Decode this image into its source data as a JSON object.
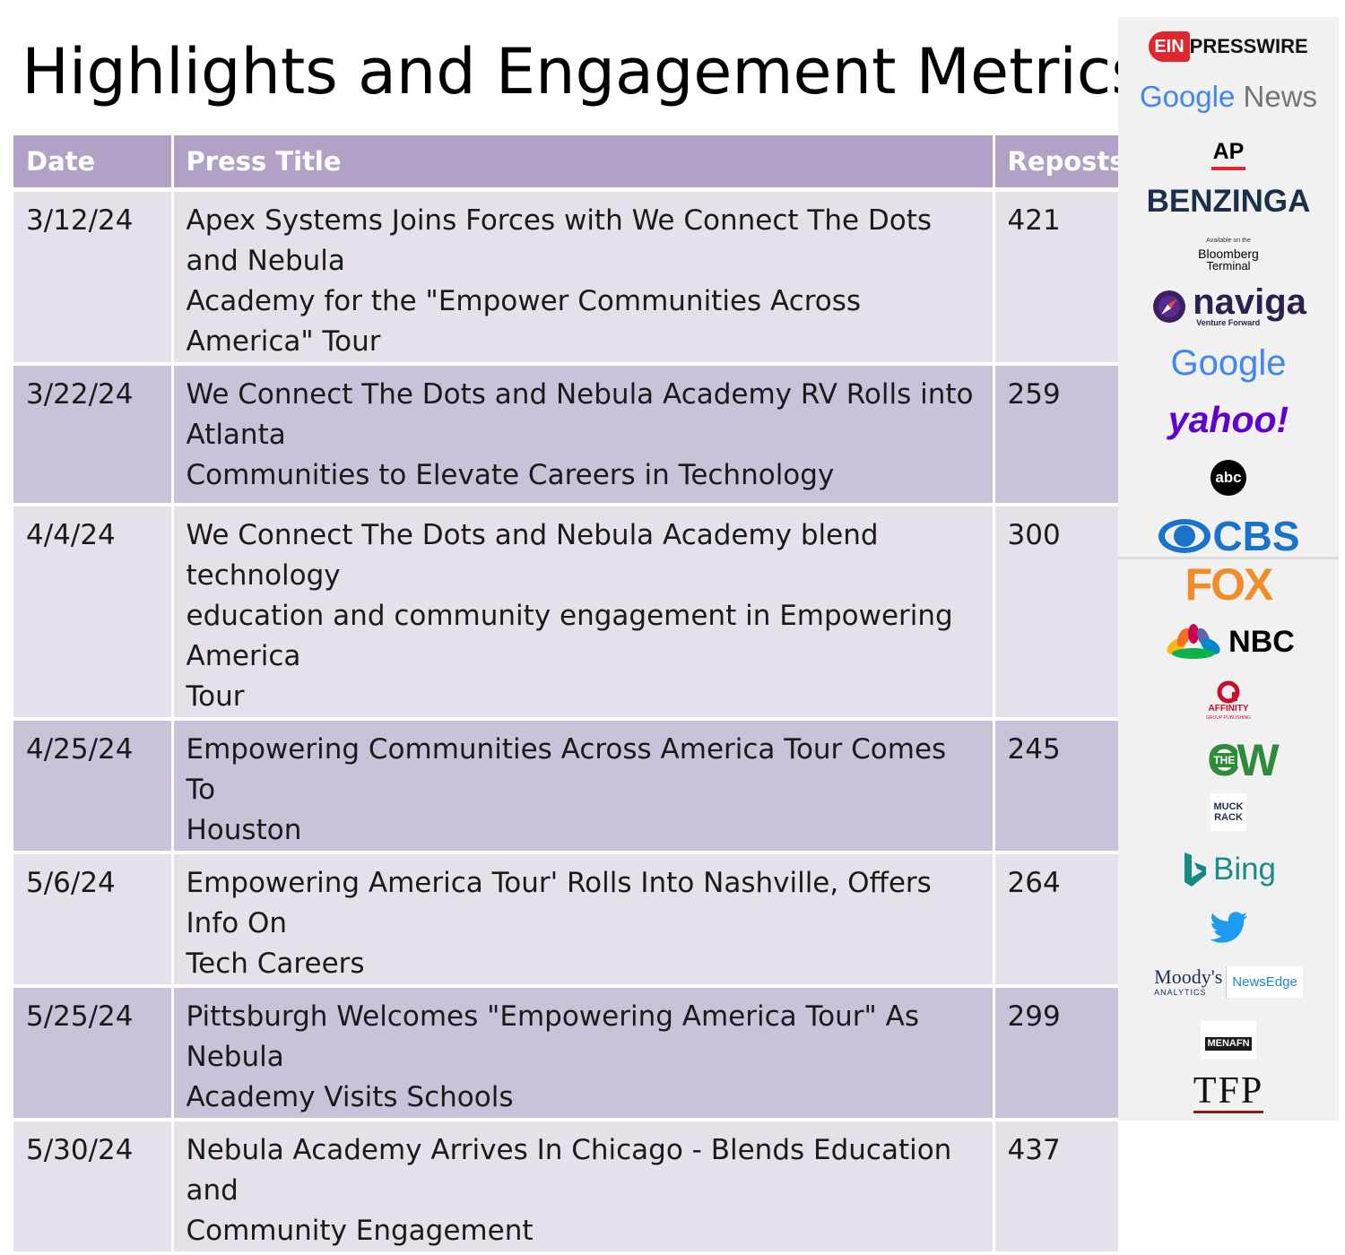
{
  "title": "Highlights and Engagement Metrics",
  "table": {
    "headers": {
      "date": "Date",
      "title": "Press Title",
      "reposts": "Reposts"
    },
    "rows": [
      {
        "date": "3/12/24",
        "title_lines": [
          "Apex Systems Joins Forces with We Connect The Dots and Nebula",
          "Academy for the \"Empower Communities Across America\" Tour"
        ],
        "reposts": "421"
      },
      {
        "date": "3/22/24",
        "title_lines": [
          "We Connect The Dots and Nebula Academy RV Rolls into Atlanta",
          "Communities to Elevate Careers in Technology"
        ],
        "reposts": "259"
      },
      {
        "date": "4/4/24",
        "title_lines": [
          "We Connect The Dots and Nebula Academy blend technology",
          "education and community engagement in Empowering America",
          "Tour"
        ],
        "reposts": "300"
      },
      {
        "date": "4/25/24",
        "title_lines": [
          "Empowering Communities Across America Tour Comes To",
          "Houston"
        ],
        "reposts": "245"
      },
      {
        "date": "5/6/24",
        "title_lines": [
          "Empowering America Tour' Rolls Into Nashville, Offers Info On",
          "Tech Careers"
        ],
        "reposts": "264"
      },
      {
        "date": "5/25/24",
        "title_lines": [
          "Pittsburgh Welcomes \"Empowering America Tour\" As Nebula",
          "Academy Visits Schools"
        ],
        "reposts": "299"
      },
      {
        "date": "5/30/24",
        "title_lines": [
          "Nebula Academy Arrives In Chicago - Blends Education and",
          "Community Engagement"
        ],
        "reposts": "437"
      }
    ]
  },
  "logos": {
    "ein_badge": "EIN",
    "ein_text": "PRESSWIRE",
    "google_news": {
      "google": "Google",
      "news": "News"
    },
    "ap": "AP",
    "benzinga": "BENZINGA",
    "bloomberg": {
      "available": "Available on the",
      "name": "Bloomberg",
      "terminal": "Terminal"
    },
    "naviga": {
      "name": "naviga",
      "tagline": "Venture Forward"
    },
    "google": "Google",
    "yahoo": "yahoo!",
    "abc": "abc",
    "cbs": "CBS",
    "fox": "FOX",
    "nbc": "NBC",
    "affinity": {
      "name": "AFFINITY",
      "sub": "GROUP PUBLISHING"
    },
    "cw": {
      "the": "THE",
      "cw": "CW"
    },
    "muckrack": {
      "line1": "MUCK",
      "line2": "RACK"
    },
    "bing": "Bing",
    "twitter": "twitter-bird",
    "moodys": {
      "name": "Moody's",
      "sub": "ANALYTICS",
      "newsedge": "NewsEdge"
    },
    "menafn": "MENAFN",
    "tfp": "TFP"
  },
  "colors": {
    "header": "#b1a1c6",
    "row_light": "#e5e0ea",
    "row_dark": "#cbc1d9",
    "sidebar": "#f1f1f2"
  }
}
